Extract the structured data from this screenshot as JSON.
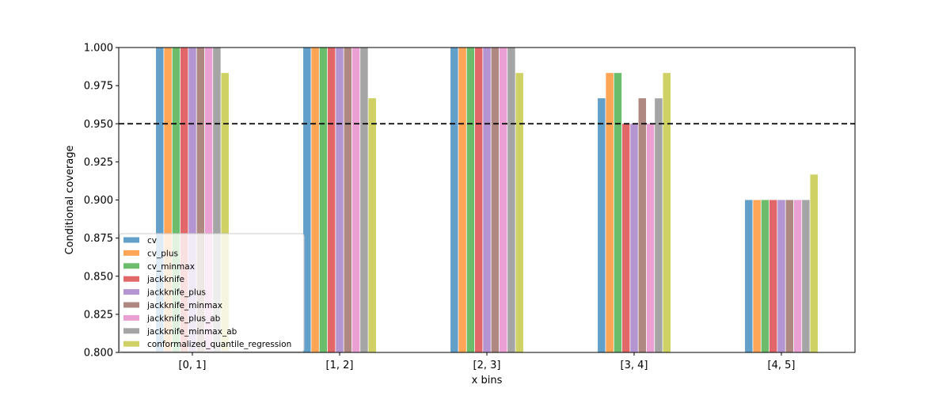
{
  "chart_data": {
    "type": "bar",
    "title": "",
    "xlabel": "x bins",
    "ylabel": "Conditional coverage",
    "categories": [
      "[0, 1]",
      "[1, 2]",
      "[2, 3]",
      "[3, 4]",
      "[4, 5]"
    ],
    "ylim": [
      0.8,
      1.0
    ],
    "yticks": [
      "0.800",
      "0.825",
      "0.850",
      "0.875",
      "0.900",
      "0.925",
      "0.950",
      "0.975",
      "1.000"
    ],
    "grid": false,
    "legend_position": "bottom-left",
    "reference_line": {
      "y": 0.95,
      "style": "dashed",
      "color": "#000000"
    },
    "series": [
      {
        "name": "cv",
        "color": "#1f77b4",
        "values": [
          1.0,
          1.0,
          1.0,
          0.9667,
          0.9
        ]
      },
      {
        "name": "cv_plus",
        "color": "#ff7f0e",
        "values": [
          1.0,
          1.0,
          1.0,
          0.9833,
          0.9
        ]
      },
      {
        "name": "cv_minmax",
        "color": "#2ca02c",
        "values": [
          1.0,
          1.0,
          1.0,
          0.9833,
          0.9
        ]
      },
      {
        "name": "jackknife",
        "color": "#d62728",
        "values": [
          1.0,
          1.0,
          1.0,
          0.95,
          0.9
        ]
      },
      {
        "name": "jackknife_plus",
        "color": "#9467bd",
        "values": [
          1.0,
          1.0,
          1.0,
          0.95,
          0.9
        ]
      },
      {
        "name": "jackknife_minmax",
        "color": "#8c564b",
        "values": [
          1.0,
          1.0,
          1.0,
          0.9667,
          0.9
        ]
      },
      {
        "name": "jackknife_plus_ab",
        "color": "#e377c2",
        "values": [
          1.0,
          1.0,
          1.0,
          0.95,
          0.9
        ]
      },
      {
        "name": "jackknife_minmax_ab",
        "color": "#7f7f7f",
        "values": [
          1.0,
          1.0,
          1.0,
          0.9667,
          0.9
        ]
      },
      {
        "name": "conformalized_quantile_regression",
        "color": "#bcbd22",
        "values": [
          0.9833,
          0.9667,
          0.9833,
          0.9833,
          0.9167
        ]
      }
    ]
  }
}
